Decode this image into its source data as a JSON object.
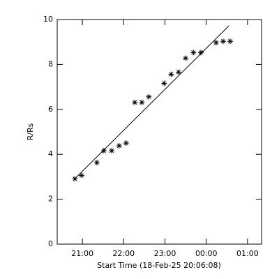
{
  "chart_data": {
    "type": "scatter",
    "xlabel": "Start Time (18-Feb-25 20:06:08)",
    "ylabel": "R/Rs",
    "xlim": [
      20.39,
      25.34
    ],
    "ylim": [
      0,
      10
    ],
    "xticks": [
      {
        "value": 21,
        "label": "21:00"
      },
      {
        "value": 22,
        "label": "22:00"
      },
      {
        "value": 23,
        "label": "23:00"
      },
      {
        "value": 24,
        "label": "00:00"
      },
      {
        "value": 25,
        "label": "01:00"
      }
    ],
    "yticks": [
      0,
      2,
      4,
      6,
      8,
      10
    ],
    "series": [
      {
        "marker": "asterisk",
        "color": "#000000",
        "x": [
          20.82,
          20.98,
          21.35,
          21.52,
          21.71,
          21.89,
          22.06,
          22.27,
          22.44,
          22.61,
          22.98,
          23.15,
          23.33,
          23.5,
          23.69,
          23.87,
          24.24,
          24.41,
          24.58
        ],
        "values": [
          2.91,
          3.06,
          3.63,
          4.16,
          4.16,
          4.38,
          4.5,
          6.31,
          6.31,
          6.56,
          7.16,
          7.56,
          7.66,
          8.28,
          8.53,
          8.53,
          8.97,
          9.03,
          9.03
        ]
      }
    ],
    "fit_line": {
      "color": "#000000",
      "x": [
        20.8,
        24.55
      ],
      "values": [
        2.88,
        9.72
      ]
    }
  }
}
